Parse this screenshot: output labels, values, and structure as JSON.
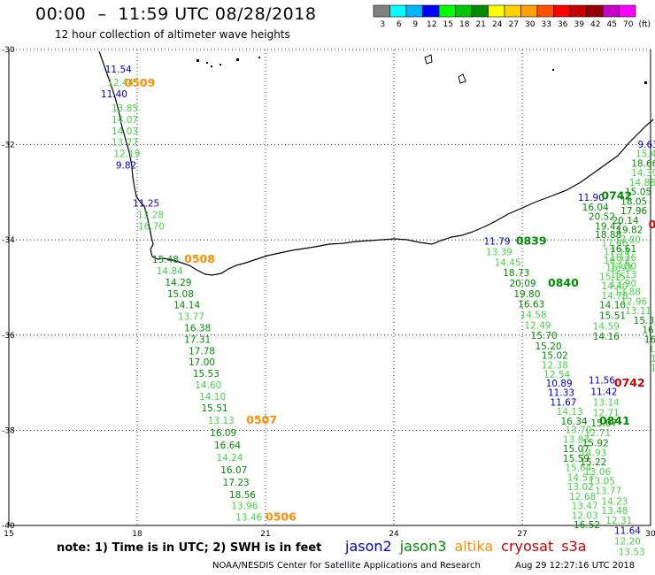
{
  "title": "00:00  –  11:59 UTC 08/28/2018",
  "subtitle": "12 hour collection of altimeter wave heights",
  "legend": {
    "labels": [
      "3",
      "6",
      "9",
      "12",
      "15",
      "18",
      "21",
      "24",
      "27",
      "30",
      "33",
      "36",
      "39",
      "42",
      "45",
      "70",
      "(ft)"
    ],
    "colors": [
      "#808080",
      "#00ffff",
      "#00b4ff",
      "#0000ff",
      "#00ff00",
      "#00c800",
      "#008c00",
      "#ffff00",
      "#ffd200",
      "#ffa000",
      "#ff5000",
      "#ff0000",
      "#c80000",
      "#960000",
      "#c800c8",
      "#ff00ff"
    ]
  },
  "axes": {
    "lat_labels": [
      "-30",
      "-32",
      "-34",
      "-36",
      "-38",
      "-40"
    ],
    "lon_labels": [
      "15",
      "18",
      "21",
      "24",
      "27",
      "30"
    ]
  },
  "colors": {
    "jason2": "#0000c8",
    "jason3": "#008c00",
    "altika": "#ff8c00",
    "cryosat": "#c80000",
    "light_green": "#46d246"
  },
  "passes": [
    {
      "label": "0509",
      "sat": "altika"
    },
    {
      "label": "0508",
      "sat": "altika"
    },
    {
      "label": "0507",
      "sat": "altika"
    },
    {
      "label": "0506",
      "sat": "altika"
    },
    {
      "label": "0839",
      "sat": "jason3"
    },
    {
      "label": "0840",
      "sat": "jason3"
    },
    {
      "label": "0841",
      "sat": "jason3"
    },
    {
      "label": "0742",
      "sat": "jason3"
    },
    {
      "label": "0742",
      "sat": "cryosat"
    },
    {
      "label": "07",
      "sat": "cryosat"
    }
  ],
  "observations": [
    {
      "lon": 17.25,
      "lat": -30.48,
      "v": "11.54",
      "c": "jason2"
    },
    {
      "lon": 17.3,
      "lat": -30.76,
      "v": "12.44",
      "c": "lg"
    },
    {
      "lon": 17.15,
      "lat": -31.0,
      "v": "11.40",
      "c": "jason2"
    },
    {
      "lon": 17.4,
      "lat": -31.3,
      "v": "13.85",
      "c": "lg"
    },
    {
      "lon": 17.4,
      "lat": -31.54,
      "v": "14.07",
      "c": "lg"
    },
    {
      "lon": 17.4,
      "lat": -31.78,
      "v": "14.03",
      "c": "lg"
    },
    {
      "lon": 17.4,
      "lat": -32.02,
      "v": "13.77",
      "c": "lg"
    },
    {
      "lon": 17.45,
      "lat": -32.26,
      "v": "12.19",
      "c": "lg"
    },
    {
      "lon": 17.5,
      "lat": -32.5,
      "v": "9.82",
      "c": "jason2"
    },
    {
      "lon": 17.9,
      "lat": -33.3,
      "v": "11.25",
      "c": "jason2"
    },
    {
      "lon": 18.0,
      "lat": -33.54,
      "v": "13.28",
      "c": "lg"
    },
    {
      "lon": 18.02,
      "lat": -33.78,
      "v": "16.70",
      "c": "lg"
    },
    {
      "lon": 18.35,
      "lat": -34.48,
      "v": "15.48",
      "c": "jason3"
    },
    {
      "lon": 18.45,
      "lat": -34.72,
      "v": "14.84",
      "c": "lg"
    },
    {
      "lon": 18.65,
      "lat": -34.96,
      "v": "14.29",
      "c": "jason3"
    },
    {
      "lon": 18.7,
      "lat": -35.2,
      "v": "15.08",
      "c": "jason3"
    },
    {
      "lon": 18.85,
      "lat": -35.44,
      "v": "14.14",
      "c": "jason3"
    },
    {
      "lon": 18.95,
      "lat": -35.68,
      "v": "13.77",
      "c": "lg"
    },
    {
      "lon": 19.1,
      "lat": -35.92,
      "v": "16.38",
      "c": "jason3"
    },
    {
      "lon": 19.1,
      "lat": -36.16,
      "v": "17.31",
      "c": "jason3"
    },
    {
      "lon": 19.2,
      "lat": -36.4,
      "v": "17.78",
      "c": "jason3"
    },
    {
      "lon": 19.2,
      "lat": -36.64,
      "v": "17.00",
      "c": "jason3"
    },
    {
      "lon": 19.3,
      "lat": -36.88,
      "v": "15.53",
      "c": "jason3"
    },
    {
      "lon": 19.35,
      "lat": -37.12,
      "v": "14.60",
      "c": "lg"
    },
    {
      "lon": 19.45,
      "lat": -37.36,
      "v": "14.10",
      "c": "lg"
    },
    {
      "lon": 19.5,
      "lat": -37.6,
      "v": "15.51",
      "c": "jason3"
    },
    {
      "lon": 19.65,
      "lat": -37.86,
      "v": "13.13",
      "c": "lg"
    },
    {
      "lon": 19.7,
      "lat": -38.12,
      "v": "16.09",
      "c": "jason3"
    },
    {
      "lon": 19.8,
      "lat": -38.38,
      "v": "16.64",
      "c": "jason3"
    },
    {
      "lon": 19.85,
      "lat": -38.64,
      "v": "14.24",
      "c": "lg"
    },
    {
      "lon": 19.95,
      "lat": -38.9,
      "v": "16.07",
      "c": "jason3"
    },
    {
      "lon": 20.0,
      "lat": -39.16,
      "v": "17.23",
      "c": "jason3"
    },
    {
      "lon": 20.15,
      "lat": -39.42,
      "v": "18.56",
      "c": "jason3"
    },
    {
      "lon": 20.2,
      "lat": -39.66,
      "v": "13.96",
      "c": "lg"
    },
    {
      "lon": 20.3,
      "lat": -39.9,
      "v": "13.46",
      "c": "lg"
    },
    {
      "lon": 26.1,
      "lat": -34.1,
      "v": "11.79",
      "c": "jason2"
    },
    {
      "lon": 26.15,
      "lat": -34.32,
      "v": "13.39",
      "c": "lg"
    },
    {
      "lon": 26.35,
      "lat": -34.54,
      "v": "14.45",
      "c": "lg"
    },
    {
      "lon": 26.55,
      "lat": -34.76,
      "v": "18.73",
      "c": "jason3"
    },
    {
      "lon": 26.7,
      "lat": -34.98,
      "v": "20.09",
      "c": "jason3"
    },
    {
      "lon": 26.8,
      "lat": -35.2,
      "v": "19.80",
      "c": "jason3"
    },
    {
      "lon": 26.9,
      "lat": -35.42,
      "v": "16.63",
      "c": "jason3"
    },
    {
      "lon": 26.95,
      "lat": -35.64,
      "v": "14.58",
      "c": "lg"
    },
    {
      "lon": 27.05,
      "lat": -35.86,
      "v": "12.49",
      "c": "lg"
    },
    {
      "lon": 27.2,
      "lat": -36.08,
      "v": "15.70",
      "c": "jason3"
    },
    {
      "lon": 27.3,
      "lat": -36.3,
      "v": "15.20",
      "c": "jason3"
    },
    {
      "lon": 27.45,
      "lat": -36.5,
      "v": "15.02",
      "c": "jason3"
    },
    {
      "lon": 27.45,
      "lat": -36.7,
      "v": "12.38",
      "c": "lg"
    },
    {
      "lon": 27.5,
      "lat": -36.9,
      "v": "12.54",
      "c": "lg"
    },
    {
      "lon": 27.55,
      "lat": -37.08,
      "v": "10.89",
      "c": "jason2"
    },
    {
      "lon": 27.6,
      "lat": -37.28,
      "v": "11.33",
      "c": "jason2"
    },
    {
      "lon": 27.65,
      "lat": -37.48,
      "v": "11.67",
      "c": "jason2"
    },
    {
      "lon": 27.8,
      "lat": -37.68,
      "v": "14.13",
      "c": "lg"
    },
    {
      "lon": 27.9,
      "lat": -37.88,
      "v": "16.34",
      "c": "jason3"
    },
    {
      "lon": 28.0,
      "lat": -38.06,
      "v": "13.70",
      "c": "lg"
    },
    {
      "lon": 27.95,
      "lat": -38.26,
      "v": "13.83",
      "c": "lg"
    },
    {
      "lon": 27.95,
      "lat": -38.46,
      "v": "15.07",
      "c": "jason3"
    },
    {
      "lon": 27.95,
      "lat": -38.66,
      "v": "15.59",
      "c": "jason3"
    },
    {
      "lon": 28.0,
      "lat": -38.86,
      "v": "15.64",
      "c": "lg"
    },
    {
      "lon": 28.05,
      "lat": -39.06,
      "v": "14.53",
      "c": "lg"
    },
    {
      "lon": 28.05,
      "lat": -39.26,
      "v": "13.02",
      "c": "lg"
    },
    {
      "lon": 28.1,
      "lat": -39.46,
      "v": "12.68",
      "c": "lg"
    },
    {
      "lon": 28.15,
      "lat": -39.66,
      "v": "13.47",
      "c": "lg"
    },
    {
      "lon": 28.15,
      "lat": -39.86,
      "v": "12.03",
      "c": "lg"
    },
    {
      "lon": 28.2,
      "lat": -40.06,
      "v": "16.52",
      "c": "jason3"
    },
    {
      "lon": 28.55,
      "lat": -37.02,
      "v": "11.56",
      "c": "jason2"
    },
    {
      "lon": 28.6,
      "lat": -37.26,
      "v": "11.42",
      "c": "jason2"
    },
    {
      "lon": 28.65,
      "lat": -37.48,
      "v": "13.14",
      "c": "lg"
    },
    {
      "lon": 28.65,
      "lat": -37.7,
      "v": "12.71",
      "c": "lg"
    },
    {
      "lon": 28.6,
      "lat": -37.92,
      "v": "15.07",
      "c": "jason3"
    },
    {
      "lon": 28.45,
      "lat": -38.12,
      "v": "12.71",
      "c": "lg"
    },
    {
      "lon": 28.4,
      "lat": -38.34,
      "v": "15.92",
      "c": "jason3"
    },
    {
      "lon": 28.35,
      "lat": -38.54,
      "v": "14.93",
      "c": "lg"
    },
    {
      "lon": 28.35,
      "lat": -38.74,
      "v": "15.22",
      "c": "jason3"
    },
    {
      "lon": 28.45,
      "lat": -38.94,
      "v": "13.06",
      "c": "lg"
    },
    {
      "lon": 28.55,
      "lat": -39.14,
      "v": "13.05",
      "c": "lg"
    },
    {
      "lon": 28.7,
      "lat": -39.34,
      "v": "13.77",
      "c": "lg"
    },
    {
      "lon": 28.85,
      "lat": -39.56,
      "v": "14.23",
      "c": "lg"
    },
    {
      "lon": 28.85,
      "lat": -39.76,
      "v": "13.48",
      "c": "lg"
    },
    {
      "lon": 28.95,
      "lat": -39.96,
      "v": "12.31",
      "c": "lg"
    },
    {
      "lon": 29.15,
      "lat": -40.18,
      "v": "11.64",
      "c": "jason2"
    },
    {
      "lon": 29.15,
      "lat": -40.4,
      "v": "12.20",
      "c": "lg"
    },
    {
      "lon": 29.25,
      "lat": -40.62,
      "v": "13.53",
      "c": "lg"
    },
    {
      "lon": 28.3,
      "lat": -33.18,
      "v": "11.90",
      "c": "jason2"
    },
    {
      "lon": 28.4,
      "lat": -33.38,
      "v": "16.04",
      "c": "jason3"
    },
    {
      "lon": 28.55,
      "lat": -33.58,
      "v": "20.52",
      "c": "jason3"
    },
    {
      "lon": 28.7,
      "lat": -33.78,
      "v": "19.42",
      "c": "jason3"
    },
    {
      "lon": 28.7,
      "lat": -33.96,
      "v": "18.88",
      "c": "jason3"
    },
    {
      "lon": 28.85,
      "lat": -34.14,
      "v": "17.46",
      "c": "lg"
    },
    {
      "lon": 28.9,
      "lat": -34.32,
      "v": "17.14",
      "c": "lg"
    },
    {
      "lon": 28.9,
      "lat": -34.5,
      "v": "16.72",
      "c": "lg"
    },
    {
      "lon": 28.95,
      "lat": -34.66,
      "v": "16.93",
      "c": "lg"
    },
    {
      "lon": 28.8,
      "lat": -34.84,
      "v": "15.15",
      "c": "lg"
    },
    {
      "lon": 28.85,
      "lat": -35.04,
      "v": "14.40",
      "c": "lg"
    },
    {
      "lon": 28.85,
      "lat": -35.24,
      "v": "14.78",
      "c": "lg"
    },
    {
      "lon": 28.8,
      "lat": -35.44,
      "v": "14.10",
      "c": "jason3"
    },
    {
      "lon": 28.8,
      "lat": -35.66,
      "v": "15.51",
      "c": "jason3"
    },
    {
      "lon": 28.65,
      "lat": -35.88,
      "v": "14.59",
      "c": "lg"
    },
    {
      "lon": 28.65,
      "lat": -36.1,
      "v": "14.16",
      "c": "jason3"
    },
    {
      "lon": 29.7,
      "lat": -32.06,
      "v": "9.63",
      "c": "jason2"
    },
    {
      "lon": 29.65,
      "lat": -32.26,
      "v": "15.42",
      "c": "lg"
    },
    {
      "lon": 29.55,
      "lat": -32.46,
      "v": "18.66",
      "c": "jason3"
    },
    {
      "lon": 29.55,
      "lat": -32.66,
      "v": "14.39",
      "c": "lg"
    },
    {
      "lon": 29.5,
      "lat": -32.86,
      "v": "14.88",
      "c": "lg"
    },
    {
      "lon": 29.4,
      "lat": -33.06,
      "v": "15.05",
      "c": "jason3"
    },
    {
      "lon": 29.3,
      "lat": -33.26,
      "v": "18.05",
      "c": "jason3"
    },
    {
      "lon": 29.3,
      "lat": -33.46,
      "v": "17.96",
      "c": "jason3"
    },
    {
      "lon": 29.1,
      "lat": -33.66,
      "v": "20.14",
      "c": "jason3"
    },
    {
      "lon": 29.2,
      "lat": -33.86,
      "v": "19.82",
      "c": "jason3"
    },
    {
      "lon": 29.15,
      "lat": -34.06,
      "v": "17.80",
      "c": "lg"
    },
    {
      "lon": 29.05,
      "lat": -34.26,
      "v": "16.61",
      "c": "jason3"
    },
    {
      "lon": 29.05,
      "lat": -34.44,
      "v": "16.26",
      "c": "lg"
    },
    {
      "lon": 29.05,
      "lat": -34.62,
      "v": "14.80",
      "c": "lg"
    },
    {
      "lon": 29.05,
      "lat": -34.8,
      "v": "15.13",
      "c": "lg"
    },
    {
      "lon": 29.05,
      "lat": -34.98,
      "v": "13.90",
      "c": "lg"
    },
    {
      "lon": 29.15,
      "lat": -35.16,
      "v": "13.88",
      "c": "lg"
    },
    {
      "lon": 29.3,
      "lat": -35.36,
      "v": "12.96",
      "c": "lg"
    },
    {
      "lon": 29.4,
      "lat": -35.56,
      "v": "13.11",
      "c": "lg"
    },
    {
      "lon": 29.6,
      "lat": -35.76,
      "v": "15.33",
      "c": "jason3"
    },
    {
      "lon": 29.8,
      "lat": -35.96,
      "v": "16.80",
      "c": "jason3"
    },
    {
      "lon": 29.85,
      "lat": -36.16,
      "v": "16.7",
      "c": "jason3"
    },
    {
      "lon": 29.95,
      "lat": -36.36,
      "v": "16.0",
      "c": "lg"
    },
    {
      "lon": 30.0,
      "lat": -36.56,
      "v": "15",
      "c": "lg"
    },
    {
      "lon": 30.0,
      "lat": -36.76,
      "v": "1",
      "c": "lg"
    }
  ],
  "pass_positions": [
    {
      "label": "0509",
      "sat": "altika",
      "lon": 17.7,
      "lat": -30.78
    },
    {
      "label": "0508",
      "sat": "altika",
      "lon": 19.1,
      "lat": -34.48
    },
    {
      "label": "0507",
      "sat": "altika",
      "lon": 20.55,
      "lat": -37.86
    },
    {
      "label": "0506",
      "sat": "altika",
      "lon": 21.0,
      "lat": -39.9
    },
    {
      "label": "0839",
      "sat": "jason3",
      "lon": 26.85,
      "lat": -34.1
    },
    {
      "label": "0840",
      "sat": "jason3",
      "lon": 27.6,
      "lat": -34.98
    },
    {
      "label": "0841",
      "sat": "jason3",
      "lon": 28.8,
      "lat": -37.88
    },
    {
      "label": "0742",
      "sat": "jason3",
      "lon": 28.85,
      "lat": -33.15
    },
    {
      "label": "0742",
      "sat": "cryosat",
      "lon": 29.15,
      "lat": -37.08
    },
    {
      "label": "07",
      "sat": "cryosat",
      "lon": 29.95,
      "lat": -33.75
    }
  ],
  "note": {
    "text": "note: 1) Time is in UTC; 2) SWH is in feet",
    "satellites": [
      {
        "name": "jason2",
        "color": "#0000c8"
      },
      {
        "name": "jason3",
        "color": "#008c00"
      },
      {
        "name": "altika",
        "color": "#ff8c00"
      },
      {
        "name": "cryosat",
        "color": "#c80000"
      },
      {
        "name": "s3a",
        "color": "#c80000"
      }
    ]
  },
  "footer": "NOAA/NESDIS Center for Satellite Applications and Research",
  "timestamp": "Aug 29 12:27:16 UTC 2018"
}
